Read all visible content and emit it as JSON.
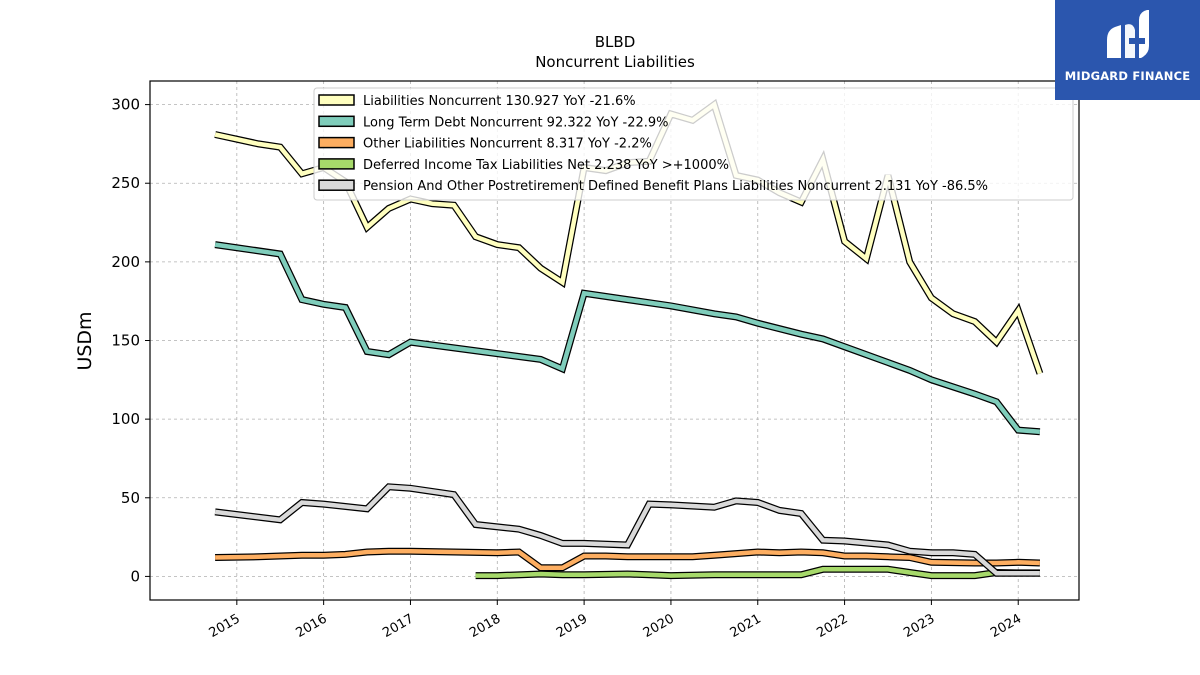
{
  "chart_data": {
    "type": "line",
    "title": "BLBD",
    "subtitle": "Noncurrent  Liabilities",
    "ylabel": "USDm",
    "ylim": [
      -15,
      315
    ],
    "yticks": [
      0,
      50,
      100,
      150,
      200,
      250,
      300
    ],
    "xlim": [
      2014.0,
      2024.7
    ],
    "xticks": [
      "2015",
      "2016",
      "2017",
      "2018",
      "2019",
      "2020",
      "2021",
      "2022",
      "2023",
      "2024"
    ],
    "grid": true,
    "legend_position": "top",
    "series": [
      {
        "name": "Liabilities Noncurrent  130.927 YoY -21.6%",
        "color": "#ffffbf",
        "points": [
          [
            2014.75,
            281
          ],
          [
            2015.0,
            278
          ],
          [
            2015.25,
            275
          ],
          [
            2015.5,
            273
          ],
          [
            2015.75,
            256
          ],
          [
            2016.0,
            260
          ],
          [
            2016.25,
            251
          ],
          [
            2016.5,
            222
          ],
          [
            2016.75,
            234
          ],
          [
            2017.0,
            240
          ],
          [
            2017.25,
            237
          ],
          [
            2017.5,
            236
          ],
          [
            2017.75,
            216
          ],
          [
            2018.0,
            211
          ],
          [
            2018.25,
            209
          ],
          [
            2018.5,
            196
          ],
          [
            2018.75,
            187
          ],
          [
            2019.0,
            260
          ],
          [
            2019.25,
            258
          ],
          [
            2019.5,
            263
          ],
          [
            2019.75,
            264
          ],
          [
            2020.0,
            294
          ],
          [
            2020.25,
            290
          ],
          [
            2020.5,
            300
          ],
          [
            2020.75,
            255
          ],
          [
            2021.0,
            252
          ],
          [
            2021.25,
            244
          ],
          [
            2021.5,
            238
          ],
          [
            2021.75,
            265
          ],
          [
            2022.0,
            213
          ],
          [
            2022.25,
            202
          ],
          [
            2022.5,
            255
          ],
          [
            2022.75,
            200
          ],
          [
            2023.0,
            177
          ],
          [
            2023.25,
            167
          ],
          [
            2023.5,
            162
          ],
          [
            2023.75,
            149
          ],
          [
            2024.0,
            169
          ],
          [
            2024.25,
            129
          ]
        ]
      },
      {
        "name": "Long Term Debt Noncurrent  92.322 YoY -22.9%",
        "color": "#7fcdbb",
        "points": [
          [
            2014.75,
            211
          ],
          [
            2015.5,
            205
          ],
          [
            2015.75,
            176
          ],
          [
            2016.0,
            173
          ],
          [
            2016.25,
            171
          ],
          [
            2016.5,
            143
          ],
          [
            2016.75,
            141
          ],
          [
            2017.0,
            149
          ],
          [
            2018.5,
            138
          ],
          [
            2018.75,
            132
          ],
          [
            2019.0,
            180
          ],
          [
            2019.5,
            176
          ],
          [
            2020.0,
            172
          ],
          [
            2020.5,
            167
          ],
          [
            2020.75,
            165
          ],
          [
            2021.0,
            161
          ],
          [
            2021.5,
            154
          ],
          [
            2021.75,
            151
          ],
          [
            2022.0,
            146
          ],
          [
            2022.5,
            136
          ],
          [
            2022.75,
            131
          ],
          [
            2023.0,
            125
          ],
          [
            2023.5,
            116
          ],
          [
            2023.75,
            111
          ],
          [
            2024.0,
            93
          ],
          [
            2024.25,
            92
          ]
        ]
      },
      {
        "name": "Other Liabilities Noncurrent  8.317 YoY -2.2%",
        "color": "#fdae61",
        "points": [
          [
            2014.75,
            12
          ],
          [
            2015.25,
            12.5
          ],
          [
            2015.75,
            13.5
          ],
          [
            2016.0,
            13.5
          ],
          [
            2016.25,
            14
          ],
          [
            2016.5,
            15.5
          ],
          [
            2016.75,
            16
          ],
          [
            2017.0,
            16
          ],
          [
            2017.5,
            15.5
          ],
          [
            2018.0,
            15
          ],
          [
            2018.25,
            15.5
          ],
          [
            2018.5,
            5.5
          ],
          [
            2018.75,
            5.5
          ],
          [
            2019.0,
            13
          ],
          [
            2019.25,
            13
          ],
          [
            2019.5,
            12.5
          ],
          [
            2019.75,
            12.5
          ],
          [
            2020.0,
            12.5
          ],
          [
            2020.25,
            12.5
          ],
          [
            2020.5,
            13.5
          ],
          [
            2020.75,
            14.5
          ],
          [
            2021.0,
            15.5
          ],
          [
            2021.25,
            15
          ],
          [
            2021.5,
            15.5
          ],
          [
            2021.75,
            15
          ],
          [
            2022.0,
            13
          ],
          [
            2022.25,
            13
          ],
          [
            2022.5,
            12.5
          ],
          [
            2022.75,
            12
          ],
          [
            2023.0,
            9
          ],
          [
            2023.5,
            8.5
          ],
          [
            2023.75,
            8.5
          ],
          [
            2024.0,
            9
          ],
          [
            2024.25,
            8.5
          ]
        ]
      },
      {
        "name": "Deferred Income Tax Liabilities Net  2.238 YoY >+1000%",
        "color": "#a6d96a",
        "points": [
          [
            2017.75,
            0.5
          ],
          [
            2018.0,
            0.5
          ],
          [
            2018.5,
            1.5
          ],
          [
            2018.75,
            1.0
          ],
          [
            2019.0,
            1.0
          ],
          [
            2019.5,
            1.5
          ],
          [
            2019.75,
            1.0
          ],
          [
            2020.0,
            0.5
          ],
          [
            2020.5,
            1.0
          ],
          [
            2020.75,
            1.0
          ],
          [
            2021.5,
            1.0
          ],
          [
            2021.75,
            4.5
          ],
          [
            2022.5,
            4.5
          ],
          [
            2022.75,
            2.5
          ],
          [
            2023.0,
            0.5
          ],
          [
            2023.5,
            0.5
          ],
          [
            2023.75,
            2.5
          ],
          [
            2024.0,
            2.2
          ],
          [
            2024.25,
            2.2
          ]
        ]
      },
      {
        "name": "Pension And Other Postretirement Defined Benefit Plans Liabilities Noncurrent  2.131 YoY -86.5%",
        "color": "#d9d9d9",
        "points": [
          [
            2014.75,
            41
          ],
          [
            2015.5,
            36
          ],
          [
            2015.75,
            47
          ],
          [
            2016.0,
            46
          ],
          [
            2016.5,
            43
          ],
          [
            2016.75,
            57
          ],
          [
            2017.0,
            56
          ],
          [
            2017.5,
            52
          ],
          [
            2017.75,
            33
          ],
          [
            2018.25,
            30
          ],
          [
            2018.5,
            26
          ],
          [
            2018.75,
            21
          ],
          [
            2019.0,
            21
          ],
          [
            2019.5,
            20
          ],
          [
            2019.75,
            46
          ],
          [
            2020.0,
            45.5
          ],
          [
            2020.5,
            44
          ],
          [
            2020.75,
            48
          ],
          [
            2021.0,
            47
          ],
          [
            2021.25,
            42
          ],
          [
            2021.5,
            40
          ],
          [
            2021.75,
            23
          ],
          [
            2022.0,
            22.5
          ],
          [
            2022.5,
            20
          ],
          [
            2022.75,
            16
          ],
          [
            2023.0,
            15
          ],
          [
            2023.25,
            15
          ],
          [
            2023.5,
            14
          ],
          [
            2023.75,
            2
          ],
          [
            2024.0,
            2
          ],
          [
            2024.25,
            2
          ]
        ]
      }
    ]
  },
  "logo": {
    "text": "MIDGARD FINANCE",
    "background": "#2b56ae"
  }
}
